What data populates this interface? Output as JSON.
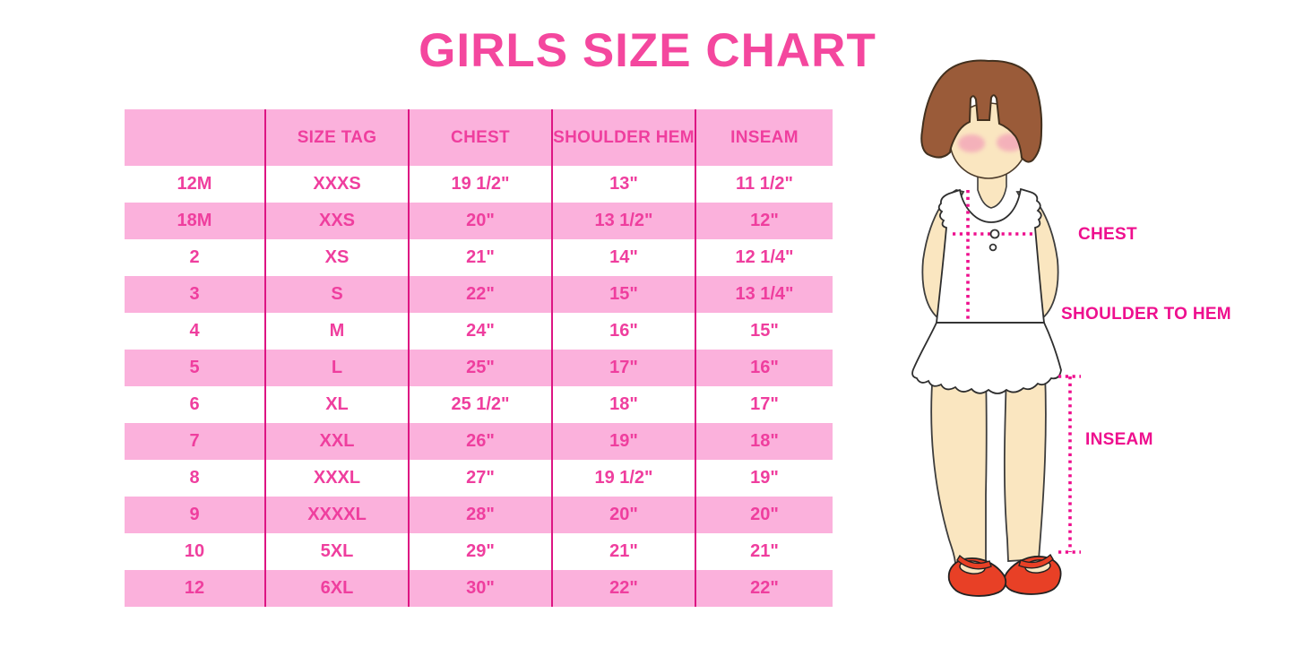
{
  "page": {
    "title": "GIRLS SIZE CHART"
  },
  "colors": {
    "title_pink": "#F4479E",
    "row_pink": "#FBB1DC",
    "table_line_magenta": "#DD1583",
    "cell_text_pink": "#EF3E9E",
    "label_magenta": "#EE0F8E",
    "hair_brown": "#9A5B39",
    "skin": "#FAE6C0",
    "shoe_red": "#E84026"
  },
  "table": {
    "columns": [
      "",
      "SIZE TAG",
      "CHEST",
      "SHOULDER HEM",
      "INSEAM"
    ],
    "rows": [
      [
        "12M",
        "XXXS",
        "19 1/2\"",
        "13\"",
        "11 1/2\""
      ],
      [
        "18M",
        "XXS",
        "20\"",
        "13 1/2\"",
        "12\""
      ],
      [
        "2",
        "XS",
        "21\"",
        "14\"",
        "12 1/4\""
      ],
      [
        "3",
        "S",
        "22\"",
        "15\"",
        "13 1/4\""
      ],
      [
        "4",
        "M",
        "24\"",
        "16\"",
        "15\""
      ],
      [
        "5",
        "L",
        "25\"",
        "17\"",
        "16\""
      ],
      [
        "6",
        "XL",
        "25 1/2\"",
        "18\"",
        "17\""
      ],
      [
        "7",
        "XXL",
        "26\"",
        "19\"",
        "18\""
      ],
      [
        "8",
        "XXXL",
        "27\"",
        "19 1/2\"",
        "19\""
      ],
      [
        "9",
        "XXXXL",
        "28\"",
        "20\"",
        "20\""
      ],
      [
        "10",
        "5XL",
        "29\"",
        "21\"",
        "21\""
      ],
      [
        "12",
        "6XL",
        "30\"",
        "22\"",
        "22\""
      ]
    ]
  },
  "figure": {
    "labels": {
      "chest": "CHEST",
      "shoulder_to_hem": "SHOULDER TO HEM",
      "inseam": "INSEAM"
    }
  }
}
